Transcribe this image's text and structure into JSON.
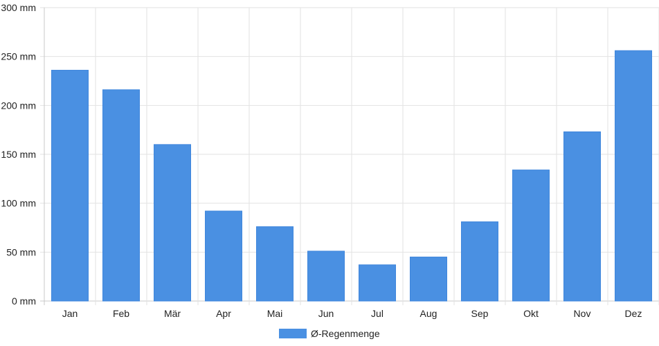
{
  "chart_data": {
    "type": "bar",
    "categories": [
      "Jan",
      "Feb",
      "Mär",
      "Apr",
      "Mai",
      "Jun",
      "Jul",
      "Aug",
      "Sep",
      "Okt",
      "Nov",
      "Dez"
    ],
    "series": [
      {
        "name": "Ø-Regenmenge",
        "values": [
          236,
          216,
          160,
          92,
          76,
          51,
          37,
          45,
          81,
          134,
          173,
          256
        ],
        "color": "#4a90e2"
      }
    ],
    "ylim": [
      0,
      300
    ],
    "y_ticks": [
      0,
      50,
      100,
      150,
      200,
      250,
      300
    ],
    "y_unit": "mm",
    "grid": true,
    "legend": "bottom-center"
  }
}
